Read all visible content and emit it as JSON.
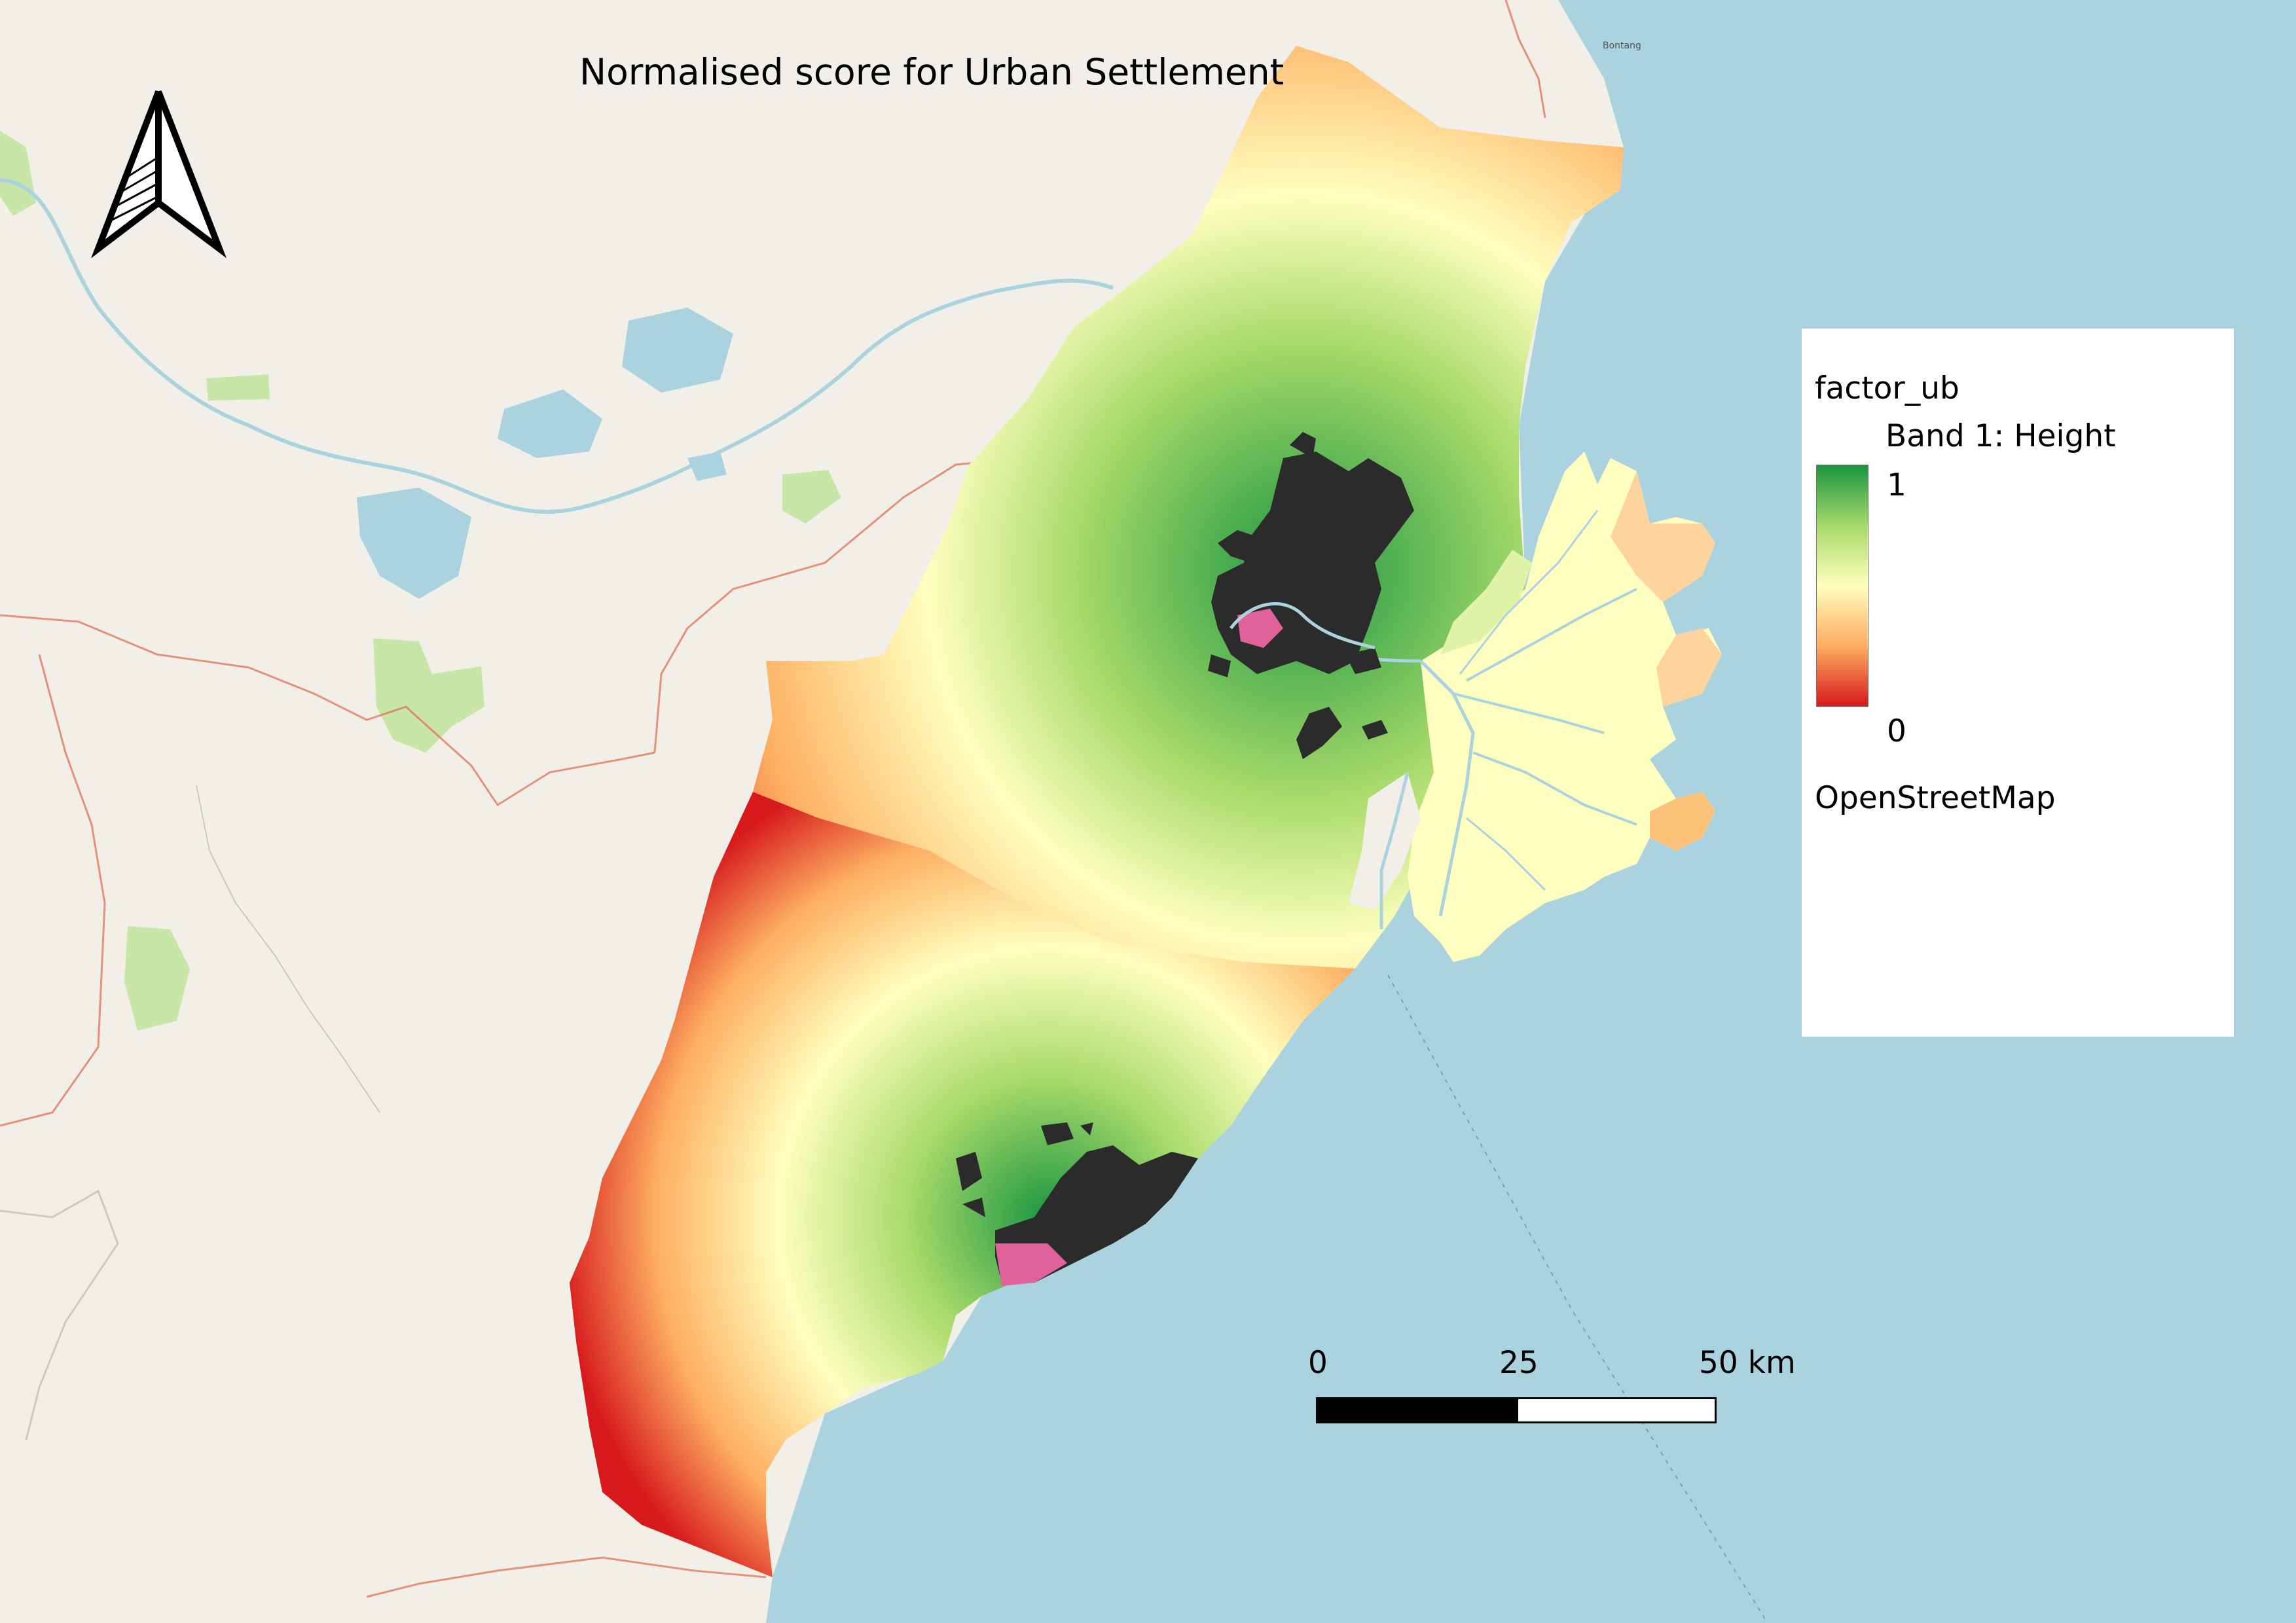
{
  "map": {
    "title": "Normalised score for Urban Settlement",
    "basemap_labels": [
      "Bontang"
    ],
    "colors": {
      "sea": "#aad3df",
      "land": "#f2efe9",
      "park": "#c8e6a8",
      "water": "#aad3df",
      "boundary": "#e06a4a",
      "urban": "#2b2b2b",
      "urban_core": "#e0629a"
    }
  },
  "legend": {
    "layer_name": "factor_ub",
    "band_label": "Band 1: Height",
    "ramp_max": "1",
    "ramp_min": "0",
    "ramp_colors": [
      "#1a9641",
      "#a6d96a",
      "#ffffbf",
      "#fdae61",
      "#d7191c"
    ],
    "basemap_name": "OpenStreetMap"
  },
  "scale_bar": {
    "label_0": "0",
    "label_mid": "25",
    "label_end": "50 km"
  },
  "north_arrow": {
    "icon": "north-arrow-icon"
  }
}
